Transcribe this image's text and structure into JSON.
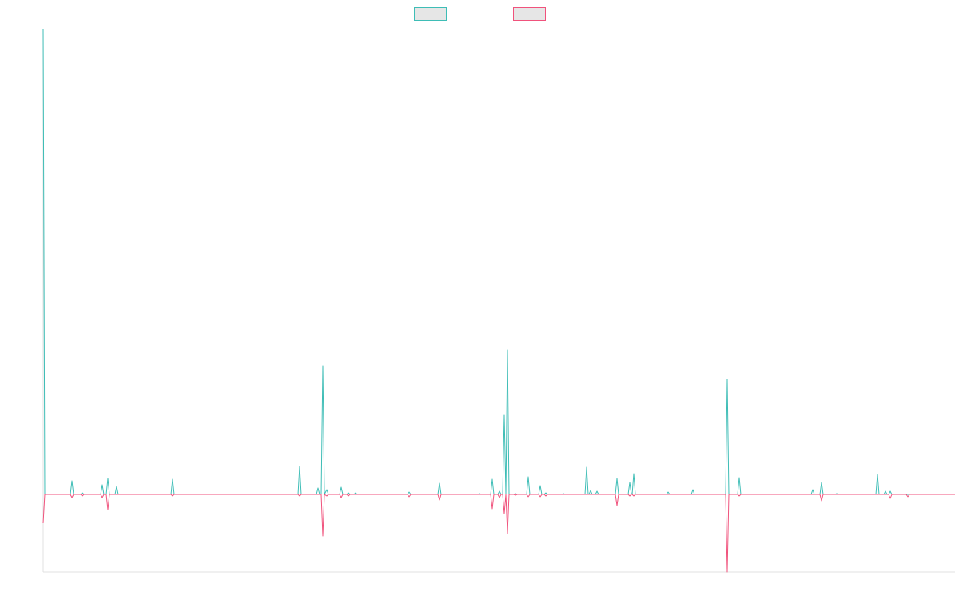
{
  "chart_data": {
    "type": "line",
    "x": [
      0,
      2,
      34,
      36,
      38,
      47,
      49,
      51,
      72,
      74,
      76,
      79,
      81,
      83,
      90,
      92,
      94,
      160,
      162,
      164,
      319,
      321,
      323,
      342,
      344,
      346,
      348,
      350,
      352,
      355,
      357,
      371,
      373,
      375,
      380,
      382,
      384,
      389,
      391,
      393,
      456,
      458,
      460,
      494,
      496,
      498,
      544,
      546,
      548,
      560,
      562,
      564,
      569,
      571,
      573,
      575,
      577,
      579,
      581,
      583,
      589,
      591,
      593,
      605,
      607,
      609,
      620,
      622,
      624,
      627,
      629,
      631,
      649,
      651,
      653,
      678,
      680,
      682,
      683,
      685,
      687,
      691,
      693,
      695,
      716,
      718,
      720,
      732,
      734,
      736,
      737,
      739,
      741,
      780,
      782,
      784,
      811,
      813,
      815,
      854,
      856,
      858,
      869,
      871,
      873,
      961,
      963,
      965,
      972,
      974,
      976,
      991,
      993,
      995,
      1042,
      1044,
      1046,
      1052,
      1054,
      1056,
      1058,
      1060,
      1062,
      1080,
      1082,
      1084,
      1141
    ],
    "series": [
      {
        "color": "#3ebdb6",
        "values": [
          583,
          0,
          0,
          17,
          0,
          0,
          2,
          0,
          0,
          12,
          0,
          0,
          20,
          0,
          0,
          10,
          0,
          0,
          19,
          0,
          0,
          35,
          0,
          0,
          8,
          0,
          0,
          161,
          0,
          6,
          0,
          0,
          9,
          0,
          0,
          2,
          0,
          0,
          2,
          0,
          0,
          3,
          0,
          0,
          14,
          0,
          0,
          1,
          0,
          0,
          19,
          0,
          0,
          4,
          0,
          0,
          100,
          0,
          181,
          0,
          0,
          1,
          0,
          0,
          22,
          0,
          0,
          11,
          0,
          0,
          2,
          0,
          0,
          1,
          0,
          0,
          34,
          0,
          0,
          5,
          0,
          0,
          4,
          0,
          0,
          20,
          0,
          0,
          15,
          0,
          0,
          26,
          0,
          0,
          3,
          0,
          0,
          6,
          0,
          0,
          144,
          0,
          0,
          21,
          0,
          0,
          6,
          0,
          0,
          15,
          0,
          0,
          1,
          0,
          0,
          25,
          0,
          0,
          4,
          0,
          0,
          4,
          0,
          0,
          0,
          0,
          0
        ]
      },
      {
        "color": "#f0527c",
        "values": [
          -36,
          0,
          0,
          -4,
          0,
          0,
          -2,
          0,
          0,
          -4,
          0,
          0,
          -19,
          0,
          0,
          0,
          0,
          0,
          -2,
          0,
          0,
          -2,
          0,
          0,
          0,
          0,
          0,
          -52,
          0,
          -2,
          0,
          0,
          -4,
          0,
          0,
          -2,
          0,
          0,
          0,
          0,
          0,
          -3,
          0,
          0,
          -7,
          0,
          0,
          0,
          0,
          0,
          -18,
          0,
          0,
          -4,
          0,
          0,
          -24,
          0,
          -49,
          0,
          0,
          -1,
          0,
          0,
          -3,
          0,
          0,
          -3,
          0,
          0,
          -2,
          0,
          0,
          0,
          0,
          0,
          0,
          0,
          0,
          0,
          0,
          0,
          0,
          0,
          0,
          -14,
          0,
          0,
          -2,
          0,
          0,
          -2,
          0,
          0,
          0,
          0,
          0,
          0,
          0,
          0,
          -97,
          0,
          0,
          -2,
          0,
          0,
          0,
          0,
          0,
          -8,
          0,
          0,
          0,
          0,
          0,
          0,
          0,
          0,
          0,
          0,
          0,
          -5,
          0,
          0,
          -3,
          0,
          0
        ]
      }
    ],
    "xlim": [
      0,
      1141
    ],
    "ylim": [
      -97,
      583
    ],
    "legend": "top"
  }
}
